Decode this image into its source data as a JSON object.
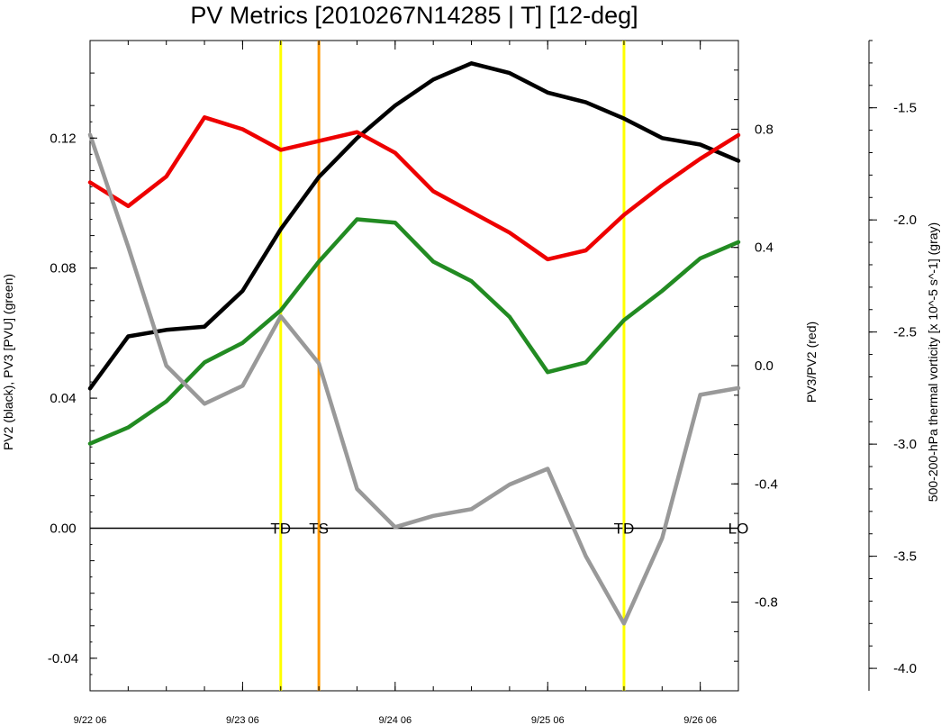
{
  "chart_data": {
    "type": "line",
    "title": "PV Metrics [2010267N14285 | T] [12-deg]",
    "x_range": [
      0,
      25.5
    ],
    "x_ticks": [
      {
        "x": 0,
        "label": "9/22 06"
      },
      {
        "x": 6,
        "label": "9/23 06"
      },
      {
        "x": 12,
        "label": "9/24 06"
      },
      {
        "x": 18,
        "label": "9/25 06"
      },
      {
        "x": 24,
        "label": "9/26 06"
      }
    ],
    "axes": {
      "left": {
        "label": "PV2 (black), PV3 [PVU] (green)",
        "range": [
          -0.05,
          0.15
        ],
        "ticks": [
          -0.04,
          0.0,
          0.04,
          0.08,
          0.12
        ],
        "tick_labels": [
          "-0.04",
          "0.00",
          "0.04",
          "0.08",
          "0.12"
        ]
      },
      "right": {
        "label": "PV3/PV2 (red)",
        "range": [
          -1.1,
          1.1
        ],
        "ticks": [
          -0.8,
          -0.4,
          0.0,
          0.4,
          0.8
        ],
        "tick_labels": [
          "-0.8",
          "-0.4",
          "0.0",
          "0.4",
          "0.8"
        ]
      },
      "far_right": {
        "label": "500-200-hPa thermal vorticity [x 10^-5 s^-1] (gray)",
        "range": [
          -4.1,
          -1.2
        ],
        "ticks": [
          -4.0,
          -3.5,
          -3.0,
          -2.5,
          -2.0,
          -1.5
        ],
        "tick_labels": [
          "-4.0",
          "-3.5",
          "-3.0",
          "-2.5",
          "-2.0",
          "-1.5"
        ]
      }
    },
    "zero_line": 0.0,
    "series": [
      {
        "key": "pv2",
        "color": "#000000",
        "axis": "left",
        "x": [
          0,
          1.5,
          3,
          4.5,
          6,
          7.5,
          9,
          10.5,
          12,
          13.5,
          15,
          16.5,
          18,
          19.5,
          21,
          22.5,
          24,
          25.5
        ],
        "values": [
          0.043,
          0.059,
          0.061,
          0.062,
          0.073,
          0.092,
          0.108,
          0.12,
          0.13,
          0.138,
          0.143,
          0.14,
          0.134,
          0.131,
          0.126,
          0.12,
          0.118,
          0.113
        ]
      },
      {
        "key": "pv3",
        "color": "#228b22",
        "axis": "left",
        "x": [
          0,
          1.5,
          3,
          4.5,
          6,
          7.5,
          9,
          10.5,
          12,
          13.5,
          15,
          16.5,
          18,
          19.5,
          21,
          22.5,
          24,
          25.5
        ],
        "values": [
          0.026,
          0.031,
          0.039,
          0.051,
          0.057,
          0.067,
          0.082,
          0.095,
          0.094,
          0.082,
          0.076,
          0.065,
          0.048,
          0.051,
          0.064,
          0.073,
          0.083,
          0.088
        ]
      },
      {
        "key": "ratio",
        "color": "#ee0000",
        "axis": "right",
        "x": [
          0,
          1.5,
          3,
          4.5,
          6,
          7.5,
          9,
          10.5,
          12,
          13.5,
          15,
          16.5,
          18,
          19.5,
          21,
          22.5,
          24,
          25.5
        ],
        "values": [
          0.62,
          0.54,
          0.64,
          0.84,
          0.8,
          0.73,
          0.76,
          0.79,
          0.72,
          0.59,
          0.52,
          0.45,
          0.36,
          0.39,
          0.51,
          0.61,
          0.7,
          0.78
        ]
      },
      {
        "key": "vort",
        "color": "#999999",
        "axis": "far_right",
        "x": [
          0,
          1.5,
          3,
          4.5,
          6,
          7.5,
          9,
          10.5,
          12,
          13.5,
          15,
          16.5,
          18,
          19.5,
          21,
          22.5,
          24,
          25.5
        ],
        "values": [
          -1.62,
          -2.12,
          -2.65,
          -2.82,
          -2.74,
          -2.43,
          -2.64,
          -3.2,
          -3.37,
          -3.32,
          -3.29,
          -3.18,
          -3.11,
          -3.5,
          -3.8,
          -3.42,
          -2.78,
          -2.75
        ]
      }
    ],
    "stage_markers": [
      {
        "x": 7.5,
        "label": "TD",
        "color": "#ffff00"
      },
      {
        "x": 9,
        "label": "TS",
        "color": "#ff9900"
      },
      {
        "x": 21,
        "label": "TD",
        "color": "#ffff00"
      },
      {
        "x": 25.5,
        "label": "LO",
        "color": ""
      }
    ]
  }
}
